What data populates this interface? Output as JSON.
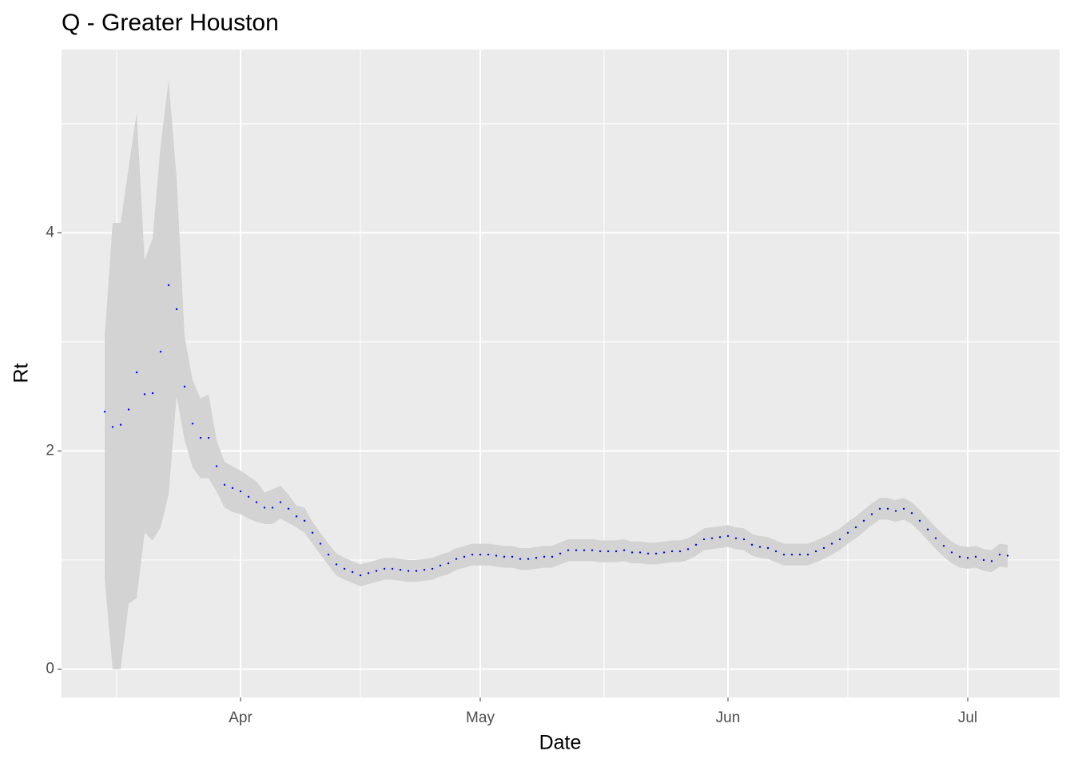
{
  "chart_data": {
    "type": "scatter",
    "title": "Q - Greater Houston",
    "x_label": "Date",
    "y_label": "Rt",
    "x": [
      -17,
      -16,
      -15,
      -14,
      -13,
      -12,
      -11,
      -10,
      -9,
      -8,
      -7,
      -6,
      -5,
      -4,
      -3,
      -2,
      -1,
      0,
      1,
      2,
      3,
      4,
      5,
      6,
      7,
      8,
      9,
      10,
      11,
      12,
      13,
      14,
      15,
      16,
      17,
      18,
      19,
      20,
      21,
      22,
      23,
      24,
      25,
      26,
      27,
      28,
      29,
      30,
      31,
      32,
      33,
      34,
      35,
      36,
      37,
      38,
      39,
      40,
      41,
      42,
      43,
      44,
      45,
      46,
      47,
      48,
      49,
      50,
      51,
      52,
      53,
      54,
      55,
      56,
      57,
      58,
      59,
      60,
      61,
      62,
      63,
      64,
      65,
      66,
      67,
      68,
      69,
      70,
      71,
      72,
      73,
      74,
      75,
      76,
      77,
      78,
      79,
      80,
      81,
      82,
      83,
      84,
      85,
      86,
      87,
      88,
      89,
      90,
      91,
      92,
      93,
      94,
      95,
      96
    ],
    "series": [
      {
        "color": "#0000ff",
        "band_color": "#d3d3d3",
        "values": [
          2.36,
          2.22,
          2.24,
          2.38,
          2.72,
          2.52,
          2.53,
          2.91,
          3.52,
          3.3,
          2.59,
          2.25,
          2.12,
          2.12,
          1.86,
          1.69,
          1.66,
          1.63,
          1.58,
          1.53,
          1.48,
          1.48,
          1.53,
          1.47,
          1.4,
          1.36,
          1.25,
          1.15,
          1.05,
          0.96,
          0.92,
          0.89,
          0.86,
          0.88,
          0.9,
          0.92,
          0.92,
          0.91,
          0.9,
          0.9,
          0.91,
          0.92,
          0.95,
          0.97,
          1.01,
          1.03,
          1.05,
          1.05,
          1.05,
          1.04,
          1.03,
          1.03,
          1.01,
          1.01,
          1.02,
          1.03,
          1.03,
          1.06,
          1.09,
          1.09,
          1.09,
          1.09,
          1.08,
          1.08,
          1.08,
          1.09,
          1.07,
          1.07,
          1.06,
          1.06,
          1.07,
          1.08,
          1.08,
          1.1,
          1.14,
          1.19,
          1.2,
          1.21,
          1.22,
          1.2,
          1.19,
          1.14,
          1.12,
          1.11,
          1.08,
          1.05,
          1.05,
          1.05,
          1.05,
          1.08,
          1.11,
          1.15,
          1.19,
          1.25,
          1.3,
          1.36,
          1.42,
          1.47,
          1.47,
          1.45,
          1.47,
          1.43,
          1.36,
          1.28,
          1.2,
          1.13,
          1.07,
          1.03,
          1.02,
          1.03,
          1.0,
          0.99,
          1.05,
          1.04
        ],
        "lower": [
          0.82,
          0.0,
          0.0,
          0.6,
          0.65,
          1.25,
          1.18,
          1.3,
          1.6,
          2.5,
          2.1,
          1.85,
          1.75,
          1.75,
          1.63,
          1.48,
          1.44,
          1.42,
          1.38,
          1.35,
          1.33,
          1.33,
          1.38,
          1.34,
          1.3,
          1.25,
          1.15,
          1.05,
          0.95,
          0.86,
          0.82,
          0.79,
          0.76,
          0.78,
          0.8,
          0.82,
          0.82,
          0.81,
          0.8,
          0.8,
          0.81,
          0.82,
          0.85,
          0.87,
          0.91,
          0.93,
          0.95,
          0.95,
          0.95,
          0.94,
          0.93,
          0.93,
          0.91,
          0.91,
          0.92,
          0.93,
          0.93,
          0.96,
          0.99,
          0.99,
          0.99,
          0.99,
          0.98,
          0.98,
          0.98,
          0.99,
          0.97,
          0.97,
          0.96,
          0.96,
          0.97,
          0.98,
          0.98,
          1.0,
          1.04,
          1.09,
          1.1,
          1.11,
          1.12,
          1.1,
          1.09,
          1.04,
          1.02,
          1.01,
          0.98,
          0.95,
          0.95,
          0.95,
          0.95,
          0.98,
          1.01,
          1.05,
          1.09,
          1.15,
          1.2,
          1.26,
          1.32,
          1.37,
          1.37,
          1.35,
          1.37,
          1.33,
          1.26,
          1.18,
          1.1,
          1.03,
          0.97,
          0.93,
          0.92,
          0.93,
          0.9,
          0.89,
          0.94,
          0.93
        ],
        "upper": [
          3.05,
          4.09,
          4.09,
          4.6,
          5.1,
          3.75,
          3.95,
          4.8,
          5.4,
          4.5,
          3.05,
          2.65,
          2.48,
          2.52,
          2.1,
          1.9,
          1.86,
          1.82,
          1.77,
          1.72,
          1.62,
          1.65,
          1.68,
          1.6,
          1.5,
          1.48,
          1.35,
          1.25,
          1.15,
          1.06,
          1.02,
          0.99,
          0.96,
          0.98,
          1.0,
          1.02,
          1.02,
          1.01,
          1.0,
          1.0,
          1.01,
          1.02,
          1.05,
          1.07,
          1.11,
          1.13,
          1.15,
          1.15,
          1.15,
          1.14,
          1.13,
          1.13,
          1.11,
          1.11,
          1.12,
          1.13,
          1.13,
          1.16,
          1.19,
          1.19,
          1.19,
          1.19,
          1.18,
          1.18,
          1.18,
          1.19,
          1.17,
          1.17,
          1.16,
          1.16,
          1.17,
          1.18,
          1.18,
          1.2,
          1.24,
          1.29,
          1.3,
          1.31,
          1.32,
          1.3,
          1.29,
          1.24,
          1.22,
          1.21,
          1.18,
          1.15,
          1.15,
          1.15,
          1.15,
          1.18,
          1.21,
          1.25,
          1.29,
          1.35,
          1.4,
          1.46,
          1.52,
          1.57,
          1.57,
          1.55,
          1.57,
          1.53,
          1.46,
          1.38,
          1.3,
          1.23,
          1.17,
          1.13,
          1.12,
          1.13,
          1.1,
          1.09,
          1.15,
          1.14
        ]
      }
    ],
    "xlim": [
      -22.4,
      102.5
    ],
    "ylim": [
      -0.26,
      5.68
    ],
    "xticks": [
      {
        "value": 0,
        "label": "Apr"
      },
      {
        "value": 30,
        "label": "May"
      },
      {
        "value": 61,
        "label": "Jun"
      },
      {
        "value": 91,
        "label": "Jul"
      }
    ],
    "yticks": [
      0,
      2,
      4
    ],
    "x_minor_grid": [
      -15.5,
      15,
      45.5,
      76
    ],
    "y_minor_grid": [
      1,
      3,
      5
    ],
    "grid": true
  }
}
